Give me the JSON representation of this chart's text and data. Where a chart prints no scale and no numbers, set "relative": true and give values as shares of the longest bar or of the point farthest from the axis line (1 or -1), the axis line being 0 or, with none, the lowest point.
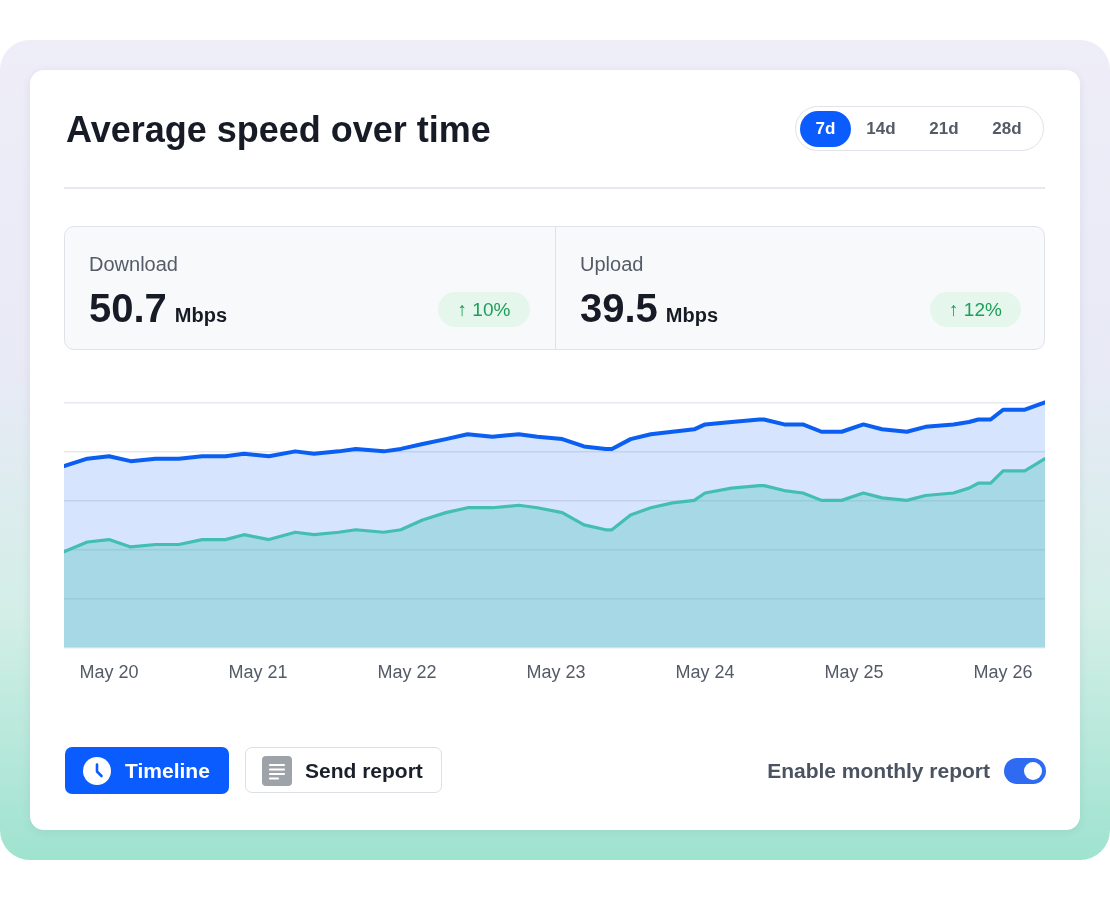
{
  "chart_data": {
    "type": "area",
    "title": "Average speed over time",
    "relative": true,
    "x": [
      "--05-19T16:45",
      "--05-19T20:30",
      "--05-20T00:00",
      "--05-20T03:30",
      "--05-20T07:30",
      "--05-20T11:15",
      "--05-20T15:00",
      "--05-20T18:45",
      "--05-20T21:45",
      "--05-21T01:45",
      "--05-21T06:00",
      "--05-21T09:00",
      "--05-21T13:00",
      "--05-21T15:45",
      "--05-21T20:15",
      "--05-21T23:00",
      "--05-22T02:30",
      "--05-22T06:15",
      "--05-22T09:45",
      "--05-22T13:45",
      "--05-22T18:00",
      "--05-22T21:00",
      "--05-23T01:00",
      "--05-23T04:30",
      "--05-23T08:00",
      "--05-23T09:00",
      "--05-23T12:00",
      "--05-23T15:15",
      "--05-23T18:45",
      "--05-23T22:15",
      "--05-24T00:00",
      "--05-24T04:15",
      "--05-24T08:45",
      "--05-24T09:30",
      "--05-24T12:45",
      "--05-24T15:45",
      "--05-24T18:45",
      "--05-24T22:00",
      "--05-25T01:30",
      "--05-25T04:30",
      "--05-25T08:30",
      "--05-25T11:30",
      "--05-25T16:00",
      "--05-25T18:30",
      "--05-25T20:00",
      "--05-25T22:00",
      "--05-26T00:00",
      "--05-26T03:30",
      "--05-26T06:45"
    ],
    "xlim": [
      "--05-19T16:45",
      "--05-26T06:45"
    ],
    "xticks": [
      {
        "value": "--05-20",
        "label": "May 20"
      },
      {
        "value": "--05-21",
        "label": "May 21"
      },
      {
        "value": "--05-22",
        "label": "May 22"
      },
      {
        "value": "--05-23",
        "label": "May 23"
      },
      {
        "value": "--05-24",
        "label": "May 24"
      },
      {
        "value": "--05-25",
        "label": "May 25"
      },
      {
        "value": "--05-26",
        "label": "May 26"
      }
    ],
    "series": [
      {
        "color": "#0b5ef2",
        "values": [
          0.74,
          0.77,
          0.78,
          0.76,
          0.77,
          0.77,
          0.78,
          0.78,
          0.79,
          0.78,
          0.8,
          0.79,
          0.8,
          0.81,
          0.8,
          0.81,
          0.83,
          0.85,
          0.87,
          0.86,
          0.87,
          0.86,
          0.85,
          0.82,
          0.81,
          0.81,
          0.85,
          0.87,
          0.88,
          0.89,
          0.91,
          0.92,
          0.93,
          0.93,
          0.91,
          0.91,
          0.88,
          0.88,
          0.91,
          0.89,
          0.88,
          0.9,
          0.91,
          0.92,
          0.93,
          0.93,
          0.97,
          0.97,
          1
        ]
      },
      {
        "color": "#4fd3a5",
        "values": [
          0.39,
          0.43,
          0.44,
          0.41,
          0.42,
          0.42,
          0.44,
          0.44,
          0.46,
          0.44,
          0.47,
          0.46,
          0.47,
          0.48,
          0.47,
          0.48,
          0.52,
          0.55,
          0.57,
          0.57,
          0.58,
          0.57,
          0.55,
          0.5,
          0.48,
          0.48,
          0.54,
          0.57,
          0.59,
          0.6,
          0.63,
          0.65,
          0.66,
          0.66,
          0.64,
          0.63,
          0.6,
          0.6,
          0.63,
          0.61,
          0.6,
          0.62,
          0.63,
          0.65,
          0.67,
          0.67,
          0.72,
          0.72,
          0.77
        ]
      }
    ],
    "grid": "y",
    "legend": false,
    "marker": "none",
    "line_style": "solid",
    "tick_labels": "x",
    "annotations": [
      "Download",
      "50.7",
      "Mbps",
      "↑ 10%",
      "Upload",
      "39.5",
      "Mbps",
      "↑ 12%",
      "7d",
      "14d",
      "21d",
      "28d",
      "Timeline",
      "Send report",
      "Enable monthly report"
    ]
  }
}
